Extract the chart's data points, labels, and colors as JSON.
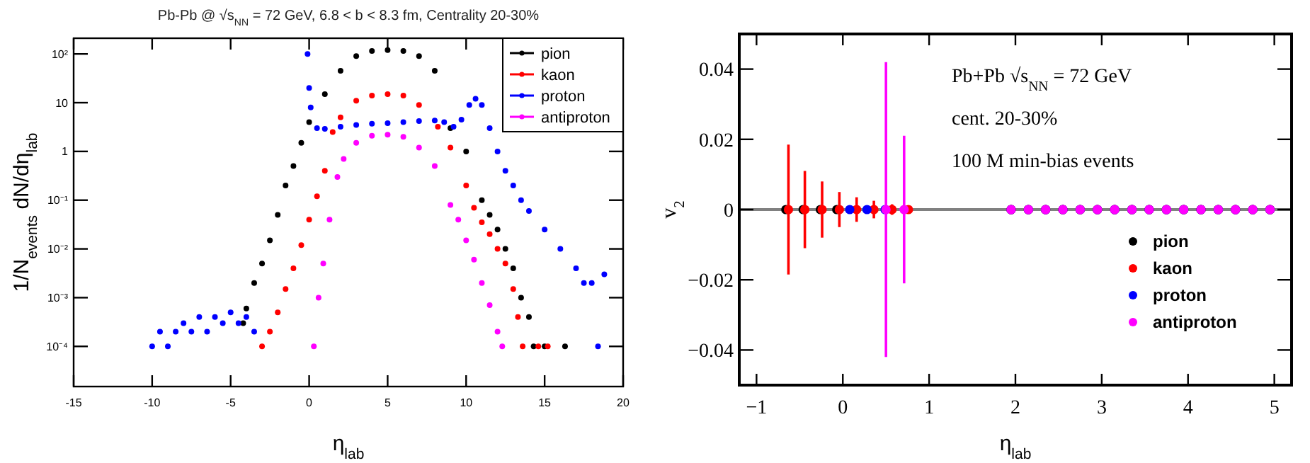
{
  "chart_data": [
    {
      "type": "scatter",
      "title": "Pb-Pb @ √s$_{NN}$ = 72 GeV, 6.8 < b < 8.3 fm, Centrality 20-30%",
      "xlabel": "η$_{lab}$",
      "ylabel": "1/N$_{events}$ dN/dη$_{lab}$",
      "log": "y",
      "marker": "circle",
      "legend": "top right",
      "xlim": [
        -15,
        20
      ],
      "xticks": [
        -15,
        -10,
        -5,
        0,
        5,
        10,
        15,
        20
      ],
      "ylim": [
        1.5e-05,
        210
      ],
      "yticks": [
        {
          "value": 0.0001,
          "label": "10⁻⁴"
        },
        {
          "value": 0.001,
          "label": "10⁻³"
        },
        {
          "value": 0.01,
          "label": "10⁻²"
        },
        {
          "value": 0.1,
          "label": "10⁻¹"
        },
        1,
        10,
        {
          "value": 100,
          "label": "10²"
        }
      ],
      "series": [
        {
          "name": "pion",
          "color": "#000000",
          "x": [
            -4.2,
            -4,
            -3.5,
            -3,
            -2.5,
            -2,
            -1.5,
            -1,
            -0.5,
            0,
            1,
            2,
            3,
            4,
            5,
            6,
            7,
            8,
            9,
            10,
            11,
            11.5,
            12,
            12.5,
            13,
            13.5,
            14,
            14.3,
            15,
            16.3
          ],
          "values": [
            0.0003,
            0.0006,
            0.002,
            0.005,
            0.015,
            0.05,
            0.2,
            0.5,
            1.5,
            4,
            15,
            45,
            90,
            115,
            120,
            115,
            90,
            45,
            3,
            1,
            0.1,
            0.05,
            0.025,
            0.01,
            0.004,
            0.001,
            0.0004,
            0.0001,
            0.0001,
            0.0001
          ]
        },
        {
          "name": "kaon",
          "color": "#ff0000",
          "x": [
            -3,
            -2.5,
            -2,
            -1.5,
            -1,
            -0.5,
            0,
            0.5,
            1,
            1.5,
            2,
            3,
            4,
            5,
            6,
            7,
            8.2,
            9,
            10,
            10.5,
            11,
            11.5,
            12,
            12.5,
            13,
            13.3,
            13.6,
            14.6,
            15.2
          ],
          "values": [
            0.0001,
            0.0002,
            0.0005,
            0.0015,
            0.004,
            0.012,
            0.04,
            0.12,
            0.4,
            2.5,
            5,
            11,
            14,
            15,
            14,
            9,
            3.2,
            1.2,
            0.2,
            0.07,
            0.035,
            0.02,
            0.01,
            0.005,
            0.0015,
            0.0004,
            0.0001,
            0.0001,
            0.0001
          ]
        },
        {
          "name": "proton",
          "color": "#0000ff",
          "x": [
            -10,
            -9.5,
            -9,
            -8.5,
            -8,
            -7.5,
            -7,
            -6.5,
            -6,
            -5.5,
            -5,
            -4.5,
            -4,
            -3.5,
            -0.1,
            0,
            0.1,
            0.5,
            1,
            2,
            3,
            4,
            5,
            6,
            7,
            8,
            8.6,
            9.2,
            9.7,
            10.2,
            10.6,
            11,
            11.5,
            12,
            12.5,
            13,
            13.5,
            14,
            15,
            16,
            17,
            17.5,
            18,
            18.4,
            18.8
          ],
          "values": [
            0.0001,
            0.0002,
            0.0001,
            0.0002,
            0.0003,
            0.0002,
            0.0004,
            0.0002,
            0.0004,
            0.0003,
            0.0005,
            0.0003,
            0.0004,
            0.0002,
            100,
            20,
            8,
            3,
            2.9,
            3.2,
            3.5,
            3.7,
            3.8,
            4,
            4.2,
            4.3,
            4,
            3.2,
            4.5,
            9,
            12,
            9,
            3,
            1,
            0.4,
            0.2,
            0.1,
            0.06,
            0.025,
            0.01,
            0.004,
            0.002,
            0.002,
            0.0001,
            0.003
          ]
        },
        {
          "name": "antiproton",
          "color": "#ff00ff",
          "x": [
            0.3,
            0.6,
            0.9,
            1.3,
            1.8,
            2.2,
            3,
            4,
            5,
            6,
            7,
            8,
            9,
            9.5,
            10,
            10.5,
            11,
            11.5,
            12,
            12.3
          ],
          "values": [
            0.0001,
            0.001,
            0.005,
            0.04,
            0.3,
            0.7,
            1.5,
            2.1,
            2.2,
            2,
            1.2,
            0.5,
            0.08,
            0.04,
            0.015,
            0.006,
            0.002,
            0.0007,
            0.0002,
            0.0001
          ]
        }
      ]
    },
    {
      "type": "scatter",
      "xlabel": "η$_{lab}$",
      "ylabel": "v$_{2}$",
      "marker": "circle",
      "legend": "bottom right",
      "xlim": [
        -1.2,
        5.2
      ],
      "xticks": [
        {
          "value": -1,
          "label": "−1"
        },
        0,
        1,
        2,
        3,
        4,
        5
      ],
      "ylim": [
        -0.05,
        0.05
      ],
      "yticks": [
        {
          "value": -0.04,
          "label": "−0.04"
        },
        {
          "value": -0.02,
          "label": "−0.02"
        },
        0,
        0.02,
        0.04
      ],
      "ref_lines": [
        {
          "axis": "y",
          "value": 0,
          "color": "#808080"
        }
      ],
      "annotations": [
        "Pb+Pb √s$_{NN}$ = 72 GeV",
        "cent. 20-30%",
        "100 M min-bias events"
      ],
      "series": [
        {
          "name": "pion",
          "color": "#000000",
          "x": [
            -0.66,
            -0.46,
            -0.26,
            -0.07,
            1.95,
            2.15,
            2.35,
            2.55,
            2.75,
            2.95,
            3.15,
            3.35,
            3.55,
            3.75,
            3.95,
            4.15,
            4.35,
            4.55,
            4.75,
            4.95
          ],
          "values": [
            0,
            0,
            0,
            0,
            0,
            0,
            0,
            0,
            0,
            0,
            0,
            0,
            0,
            0,
            0,
            0,
            0,
            0,
            0,
            0
          ]
        },
        {
          "name": "kaon",
          "color": "#ff0000",
          "x": [
            -0.63,
            -0.44,
            -0.24,
            -0.04,
            0.16,
            0.36,
            0.57,
            0.76,
            1.95,
            2.15,
            2.35,
            2.55,
            2.75,
            2.95,
            3.15,
            3.35,
            3.55,
            3.75,
            3.95,
            4.15,
            4.35,
            4.55,
            4.75,
            4.95
          ],
          "values": [
            0,
            0,
            0,
            0,
            0,
            0,
            0,
            0,
            0,
            0,
            0,
            0,
            0,
            0,
            0,
            0,
            0,
            0,
            0,
            0,
            0,
            0,
            0,
            0
          ],
          "errors": [
            0.0185,
            0.011,
            0.008,
            0.005,
            0.0035,
            0.0025,
            0.0015,
            0.001,
            null,
            null,
            null,
            null,
            null,
            null,
            null,
            null,
            null,
            null,
            null,
            null,
            null,
            null,
            null,
            null
          ]
        },
        {
          "name": "proton",
          "color": "#0000ff",
          "x": [
            0.08,
            0.28,
            0.49,
            1.95,
            2.15,
            2.35,
            2.55,
            2.75,
            2.95,
            3.15,
            3.35,
            3.55,
            3.75,
            3.95,
            4.15,
            4.35,
            4.55,
            4.75,
            4.95
          ],
          "values": [
            0,
            0,
            0,
            0,
            0,
            0,
            0,
            0,
            0,
            0,
            0,
            0,
            0,
            0,
            0,
            0,
            0,
            0,
            0
          ]
        },
        {
          "name": "antiproton",
          "color": "#ff00ff",
          "x": [
            0.5,
            0.71,
            1.95,
            2.15,
            2.35,
            2.55,
            2.75,
            2.95,
            3.15,
            3.35,
            3.55,
            3.75,
            3.95,
            4.15,
            4.35,
            4.55,
            4.75,
            4.95
          ],
          "values": [
            0,
            0,
            0,
            0,
            0,
            0,
            0,
            0,
            0,
            0,
            0,
            0,
            0,
            0,
            0,
            0,
            0,
            0
          ],
          "errors": [
            0.042,
            0.021,
            null,
            null,
            null,
            null,
            null,
            null,
            null,
            null,
            null,
            null,
            null,
            null,
            null,
            null,
            null,
            null
          ]
        }
      ]
    }
  ]
}
